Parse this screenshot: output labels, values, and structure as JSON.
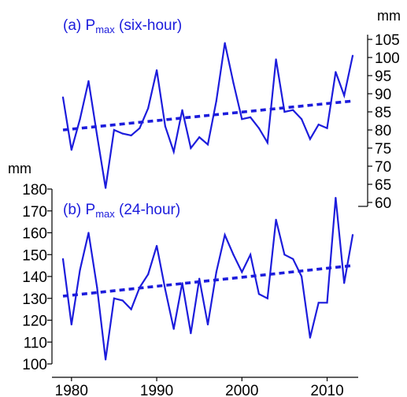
{
  "colors": {
    "series": "#1c1cdc",
    "trend": "#1c1cdc",
    "axis": "#000000",
    "background": "#ffffff"
  },
  "chart_data": [
    {
      "type": "line",
      "title_prefix": "(a) P",
      "title_sub": "max",
      "title_suffix": " (six-hour)",
      "ylabel": "mm",
      "yaxis_side": "right",
      "ylim": [
        60,
        105
      ],
      "yticks": [
        60,
        65,
        70,
        75,
        80,
        85,
        90,
        95,
        100,
        105
      ],
      "xlim": [
        1978,
        2014
      ],
      "x": [
        1979,
        1980,
        1981,
        1982,
        1983,
        1984,
        1985,
        1986,
        1987,
        1988,
        1989,
        1990,
        1991,
        1992,
        1993,
        1994,
        1995,
        1996,
        1997,
        1998,
        1999,
        2000,
        2001,
        2002,
        2003,
        2004,
        2005,
        2006,
        2007,
        2008,
        2009,
        2010,
        2011,
        2012,
        2013
      ],
      "series": [
        {
          "values": [
            89,
            74.5,
            83,
            93.5,
            78.5,
            64,
            80,
            79,
            78.5,
            80.5,
            86,
            96.5,
            81,
            74,
            85.5,
            75,
            78,
            76,
            88,
            104,
            93,
            83,
            83.5,
            80.5,
            76.5,
            99.5,
            85,
            85.5,
            83,
            77.5,
            81.5,
            80.5,
            96,
            89.5,
            100.5
          ]
        }
      ],
      "trend": {
        "x": [
          1979,
          2013
        ],
        "y": [
          80,
          88
        ]
      }
    },
    {
      "type": "line",
      "title_prefix": "(b) P",
      "title_sub": "max",
      "title_suffix": " (24-hour)",
      "ylabel": "mm",
      "yaxis_side": "left",
      "ylim": [
        100,
        180
      ],
      "yticks": [
        100,
        110,
        120,
        130,
        140,
        150,
        160,
        170,
        180
      ],
      "xlim": [
        1978,
        2014
      ],
      "xticks": [
        1980,
        1990,
        2000,
        2010
      ],
      "x": [
        1979,
        1980,
        1981,
        1982,
        1983,
        1984,
        1985,
        1986,
        1987,
        1988,
        1989,
        1990,
        1991,
        1992,
        1993,
        1994,
        1995,
        1996,
        1997,
        1998,
        1999,
        2000,
        2001,
        2002,
        2003,
        2004,
        2005,
        2006,
        2007,
        2008,
        2009,
        2010,
        2011,
        2012,
        2013
      ],
      "series": [
        {
          "values": [
            148,
            118,
            143,
            160,
            135,
            102,
            130,
            129,
            125,
            135,
            141,
            154,
            134,
            116,
            137,
            114,
            139,
            118,
            142,
            159,
            150,
            142,
            150,
            132,
            130,
            166,
            150,
            148,
            140,
            112,
            128,
            128,
            176,
            137,
            159
          ]
        }
      ],
      "trend": {
        "x": [
          1979,
          2013
        ],
        "y": [
          131,
          145
        ]
      }
    }
  ]
}
